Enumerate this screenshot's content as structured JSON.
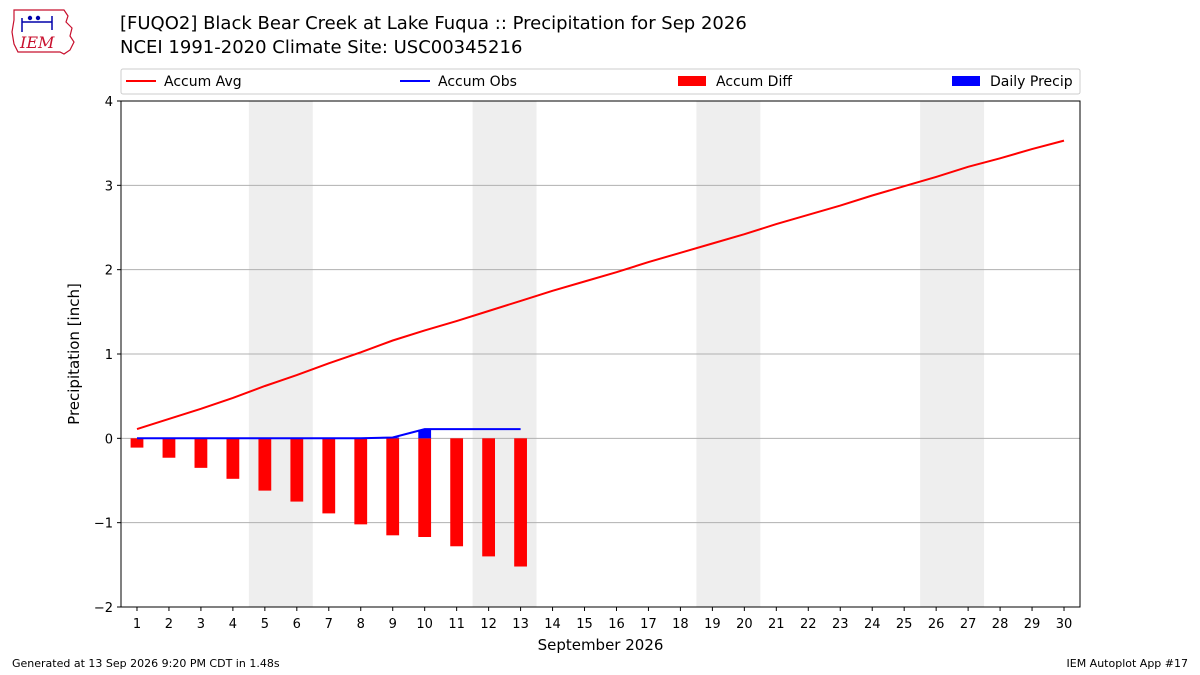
{
  "header": {
    "title_line1": "[FUQO2] Black Bear Creek at Lake Fuqua :: Precipitation for Sep 2026",
    "title_line2": "NCEI 1991-2020 Climate Site: USC00345216",
    "logo_text": "IEM"
  },
  "footer": {
    "generated": "Generated at 13 Sep 2026 9:20 PM CDT in 1.48s",
    "app": "IEM Autoplot App #17"
  },
  "colors": {
    "accum_avg": "#ff0000",
    "accum_obs": "#0000ff",
    "accum_diff": "#ff0000",
    "daily_precip": "#0000ff",
    "weekend_shade": "#eeeeee",
    "grid": "#b0b0b0"
  },
  "chart_data": {
    "type": "bar",
    "title": "[FUQO2] Black Bear Creek at Lake Fuqua :: Precipitation for Sep 2026",
    "xlabel": "September 2026",
    "ylabel": "Precipitation [inch]",
    "x": [
      1,
      2,
      3,
      4,
      5,
      6,
      7,
      8,
      9,
      10,
      11,
      12,
      13,
      14,
      15,
      16,
      17,
      18,
      19,
      20,
      21,
      22,
      23,
      24,
      25,
      26,
      27,
      28,
      29,
      30
    ],
    "xlim": [
      0.5,
      30.5
    ],
    "ylim": [
      -2,
      4
    ],
    "yticks": [
      -2,
      -1,
      0,
      1,
      2,
      3,
      4
    ],
    "ytick_labels": [
      "−2",
      "−1",
      "0",
      "1",
      "2",
      "3",
      "4"
    ],
    "grid": "horizontal",
    "legend_position": "top",
    "weekend_shading": [
      [
        4.5,
        6.5
      ],
      [
        11.5,
        13.5
      ],
      [
        18.5,
        20.5
      ],
      [
        25.5,
        27.5
      ]
    ],
    "series": [
      {
        "name": "Accum Avg",
        "type": "line",
        "x": [
          1,
          2,
          3,
          4,
          5,
          6,
          7,
          8,
          9,
          10,
          11,
          12,
          13,
          14,
          15,
          16,
          17,
          18,
          19,
          20,
          21,
          22,
          23,
          24,
          25,
          26,
          27,
          28,
          29,
          30
        ],
        "values": [
          0.11,
          0.23,
          0.35,
          0.48,
          0.62,
          0.75,
          0.89,
          1.02,
          1.16,
          1.28,
          1.39,
          1.51,
          1.63,
          1.75,
          1.86,
          1.97,
          2.09,
          2.2,
          2.31,
          2.42,
          2.54,
          2.65,
          2.76,
          2.88,
          2.99,
          3.1,
          3.22,
          3.32,
          3.43,
          3.53
        ]
      },
      {
        "name": "Accum Obs",
        "type": "line",
        "x": [
          1,
          2,
          3,
          4,
          5,
          6,
          7,
          8,
          9,
          10,
          11,
          12,
          13
        ],
        "values": [
          0,
          0,
          0,
          0,
          0,
          0,
          0,
          0,
          0.01,
          0.11,
          0.11,
          0.11,
          0.11
        ]
      },
      {
        "name": "Accum Diff",
        "type": "bar",
        "x": [
          1,
          2,
          3,
          4,
          5,
          6,
          7,
          8,
          9,
          10,
          11,
          12,
          13
        ],
        "values": [
          -0.11,
          -0.23,
          -0.35,
          -0.48,
          -0.62,
          -0.75,
          -0.89,
          -1.02,
          -1.15,
          -1.17,
          -1.28,
          -1.4,
          -1.52
        ]
      },
      {
        "name": "Daily Precip",
        "type": "bar",
        "x": [
          1,
          2,
          3,
          4,
          5,
          6,
          7,
          8,
          9,
          10,
          11,
          12,
          13
        ],
        "values": [
          0,
          0,
          0,
          0,
          0,
          0,
          0,
          0,
          0.01,
          0.1,
          0,
          0,
          0
        ]
      }
    ]
  }
}
